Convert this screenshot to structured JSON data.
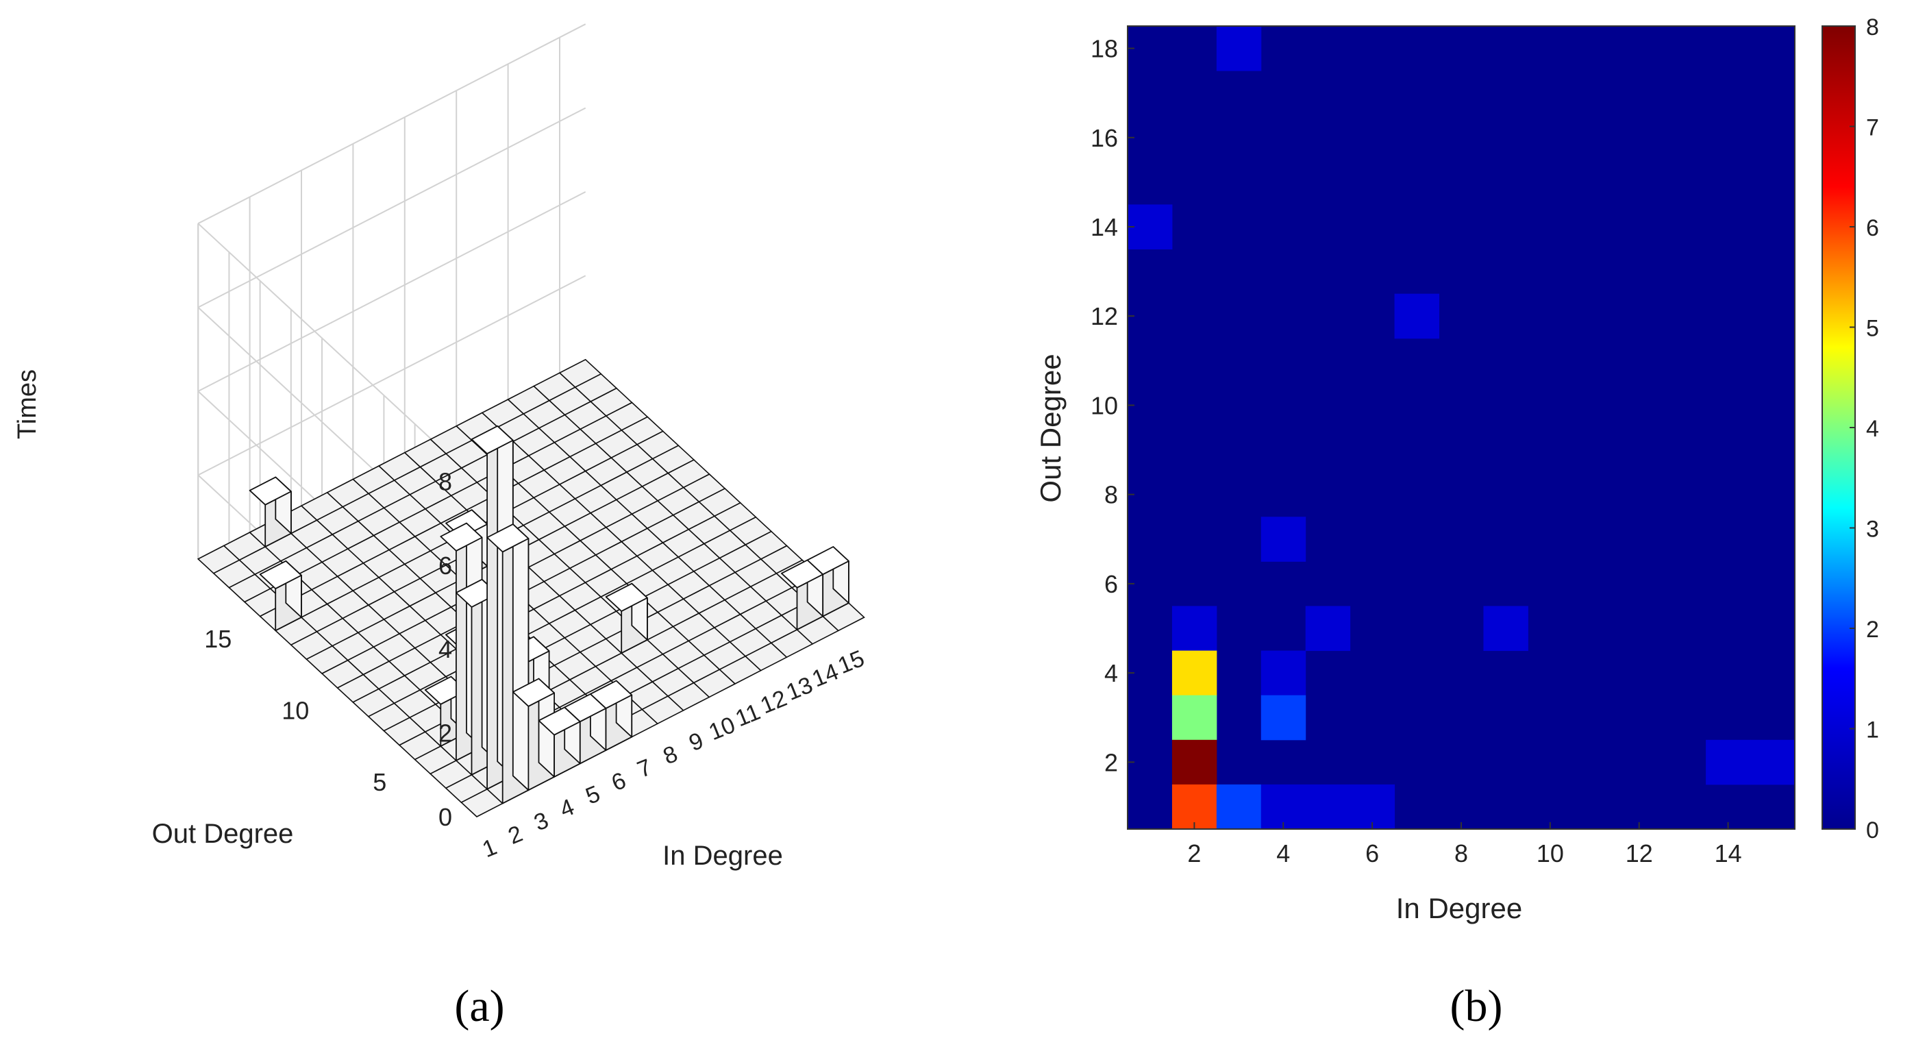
{
  "chart_data": [
    {
      "id": "a",
      "type": "bar3d",
      "caption": "(a)",
      "x_label": "In Degree",
      "y_label": "Out Degree",
      "z_label": "Times",
      "x_range": [
        1,
        15
      ],
      "y_range": [
        1,
        18
      ],
      "z_lim": [
        0,
        8
      ],
      "x_ticks": [
        1,
        2,
        3,
        4,
        5,
        6,
        7,
        8,
        9,
        10,
        11,
        12,
        13,
        14,
        15
      ],
      "y_ticks": [
        5,
        10,
        15
      ],
      "z_ticks": [
        0,
        2,
        4,
        6,
        8
      ],
      "cells": [
        {
          "in_degree": 1,
          "out_degree": 14,
          "times": 1
        },
        {
          "in_degree": 3,
          "out_degree": 18,
          "times": 1
        },
        {
          "in_degree": 7,
          "out_degree": 12,
          "times": 1
        },
        {
          "in_degree": 4,
          "out_degree": 7,
          "times": 1
        },
        {
          "in_degree": 2,
          "out_degree": 5,
          "times": 1
        },
        {
          "in_degree": 5,
          "out_degree": 5,
          "times": 1
        },
        {
          "in_degree": 9,
          "out_degree": 5,
          "times": 1
        },
        {
          "in_degree": 2,
          "out_degree": 4,
          "times": 5
        },
        {
          "in_degree": 4,
          "out_degree": 4,
          "times": 1
        },
        {
          "in_degree": 2,
          "out_degree": 3,
          "times": 4
        },
        {
          "in_degree": 4,
          "out_degree": 3,
          "times": 2
        },
        {
          "in_degree": 2,
          "out_degree": 2,
          "times": 8
        },
        {
          "in_degree": 14,
          "out_degree": 2,
          "times": 1
        },
        {
          "in_degree": 15,
          "out_degree": 2,
          "times": 1
        },
        {
          "in_degree": 2,
          "out_degree": 1,
          "times": 6
        },
        {
          "in_degree": 3,
          "out_degree": 1,
          "times": 2
        },
        {
          "in_degree": 4,
          "out_degree": 1,
          "times": 1
        },
        {
          "in_degree": 5,
          "out_degree": 1,
          "times": 1
        },
        {
          "in_degree": 6,
          "out_degree": 1,
          "times": 1
        }
      ]
    },
    {
      "id": "b",
      "type": "heatmap",
      "caption": "(b)",
      "xlabel": "In Degree",
      "ylabel": "Out Degree",
      "x_range": [
        1,
        15
      ],
      "y_range": [
        1,
        18
      ],
      "x_ticks": [
        2,
        4,
        6,
        8,
        10,
        12,
        14
      ],
      "y_ticks": [
        2,
        4,
        6,
        8,
        10,
        12,
        14,
        16,
        18
      ],
      "color_range": [
        0,
        8
      ],
      "colorbar_ticks": [
        0,
        1,
        2,
        3,
        4,
        5,
        6,
        7,
        8
      ],
      "colormap": "jet",
      "colormap_stops": [
        "#00008f",
        "#0000ff",
        "#00ffff",
        "#ffff00",
        "#ff0000",
        "#800000"
      ],
      "cells": [
        {
          "in_degree": 1,
          "out_degree": 14,
          "value": 1
        },
        {
          "in_degree": 3,
          "out_degree": 18,
          "value": 1
        },
        {
          "in_degree": 7,
          "out_degree": 12,
          "value": 1
        },
        {
          "in_degree": 4,
          "out_degree": 7,
          "value": 1
        },
        {
          "in_degree": 2,
          "out_degree": 5,
          "value": 1
        },
        {
          "in_degree": 5,
          "out_degree": 5,
          "value": 1
        },
        {
          "in_degree": 9,
          "out_degree": 5,
          "value": 1
        },
        {
          "in_degree": 2,
          "out_degree": 4,
          "value": 5
        },
        {
          "in_degree": 4,
          "out_degree": 4,
          "value": 1
        },
        {
          "in_degree": 2,
          "out_degree": 3,
          "value": 4
        },
        {
          "in_degree": 4,
          "out_degree": 3,
          "value": 2
        },
        {
          "in_degree": 2,
          "out_degree": 2,
          "value": 8
        },
        {
          "in_degree": 14,
          "out_degree": 2,
          "value": 1
        },
        {
          "in_degree": 15,
          "out_degree": 2,
          "value": 1
        },
        {
          "in_degree": 2,
          "out_degree": 1,
          "value": 6
        },
        {
          "in_degree": 3,
          "out_degree": 1,
          "value": 2
        },
        {
          "in_degree": 4,
          "out_degree": 1,
          "value": 1
        },
        {
          "in_degree": 5,
          "out_degree": 1,
          "value": 1
        },
        {
          "in_degree": 6,
          "out_degree": 1,
          "value": 1
        }
      ]
    }
  ]
}
